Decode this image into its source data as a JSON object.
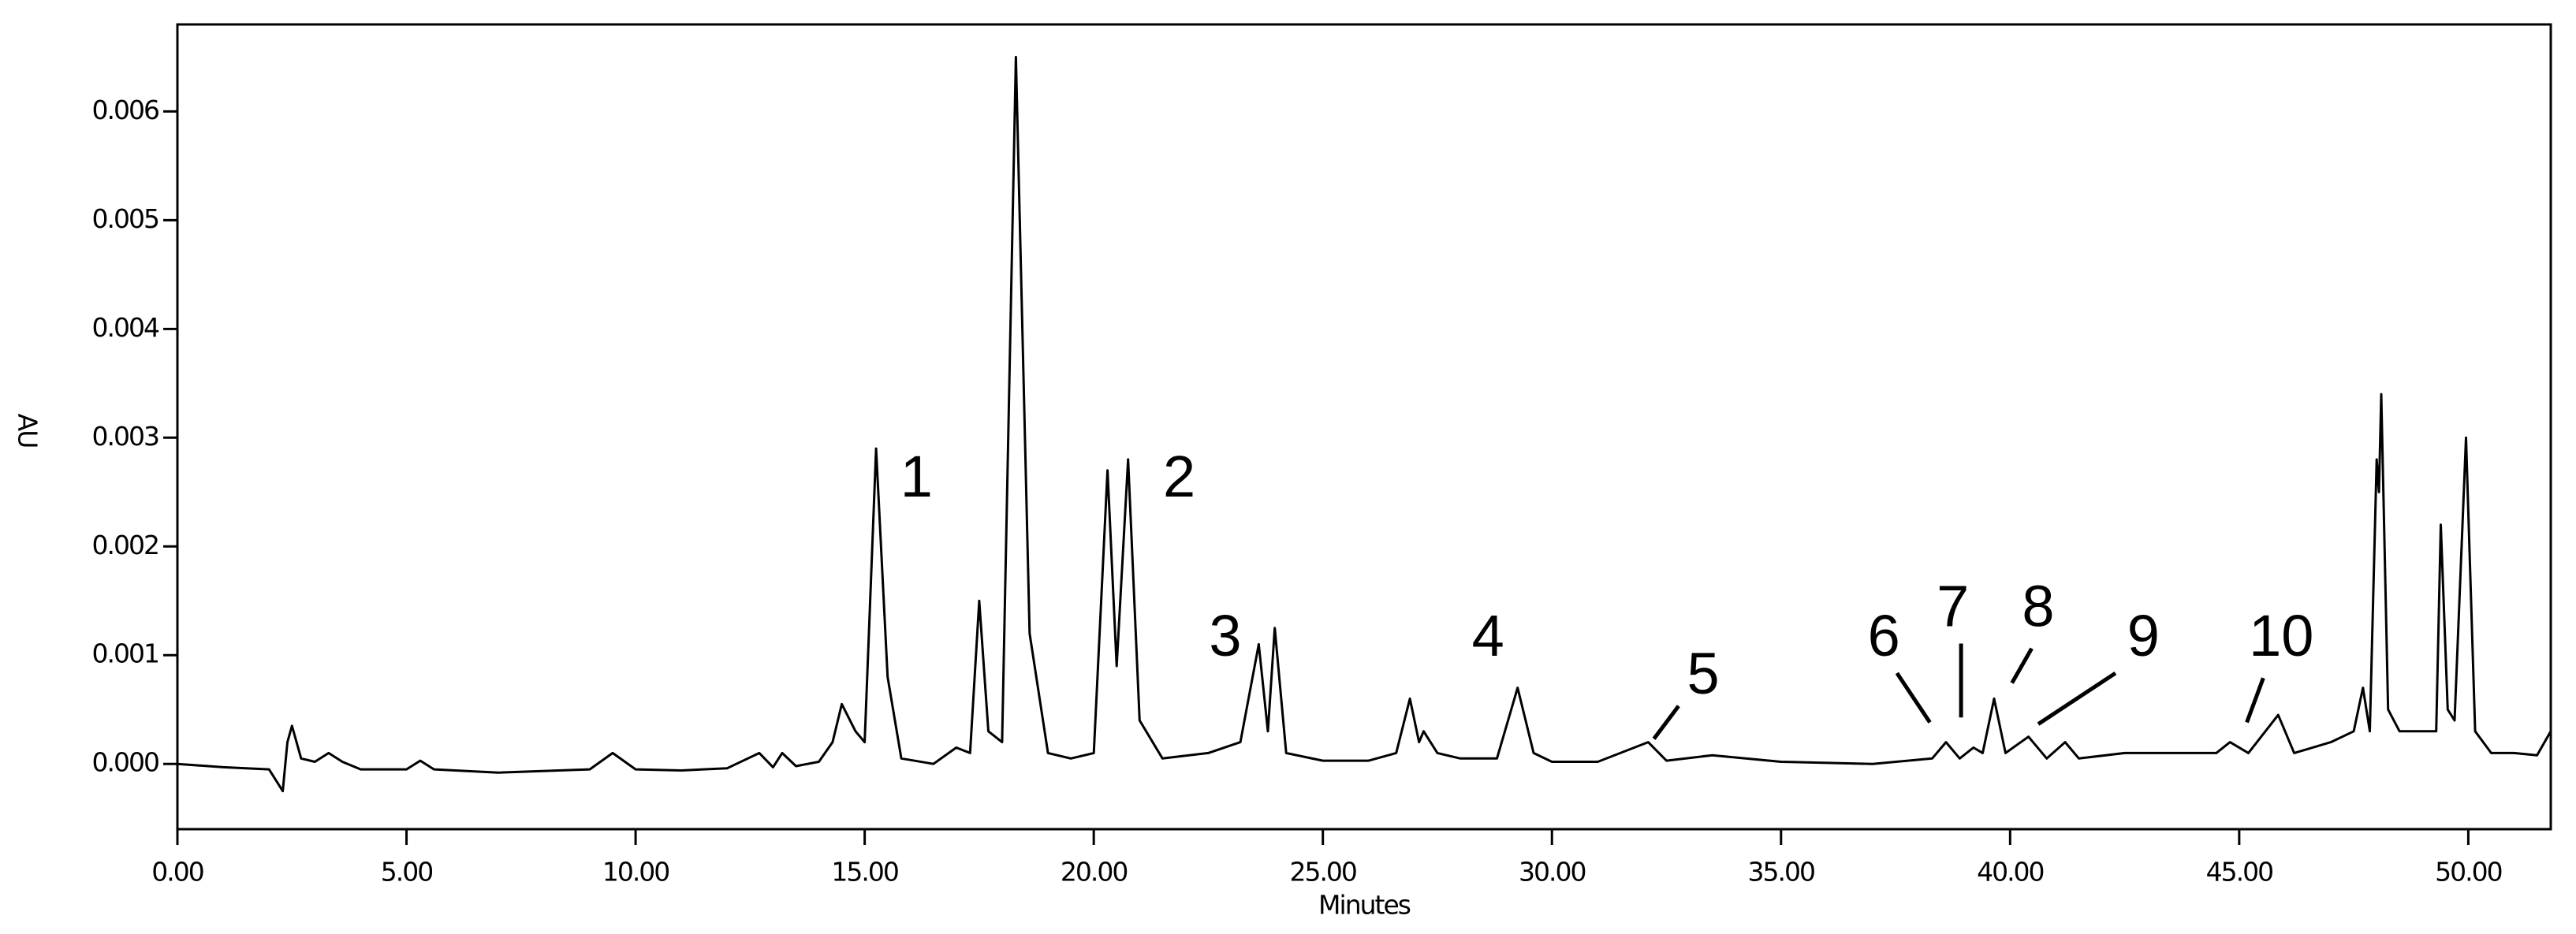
{
  "chart_data": {
    "type": "line",
    "x_label": "Minutes",
    "y_label": "AU",
    "xlim": [
      0,
      51.8
    ],
    "ylim": [
      -0.0006,
      0.0068
    ],
    "xticks": [
      {
        "value": 0,
        "label": "0.00"
      },
      {
        "value": 5,
        "label": "5.00"
      },
      {
        "value": 10,
        "label": "10.00"
      },
      {
        "value": 15,
        "label": "15.00"
      },
      {
        "value": 20,
        "label": "20.00"
      },
      {
        "value": 25,
        "label": "25.00"
      },
      {
        "value": 30,
        "label": "30.00"
      },
      {
        "value": 35,
        "label": "35.00"
      },
      {
        "value": 40,
        "label": "40.00"
      },
      {
        "value": 45,
        "label": "45.00"
      },
      {
        "value": 50,
        "label": "50.00"
      }
    ],
    "yticks": [
      {
        "value": 0,
        "label": "0.000"
      },
      {
        "value": 0.001,
        "label": "0.001"
      },
      {
        "value": 0.002,
        "label": "0.002"
      },
      {
        "value": 0.003,
        "label": "0.003"
      },
      {
        "value": 0.004,
        "label": "0.004"
      },
      {
        "value": 0.005,
        "label": "0.005"
      },
      {
        "value": 0.006,
        "label": "0.006"
      }
    ],
    "color": "#000000",
    "x": [
      0,
      1,
      2,
      2.3,
      2.4,
      2.5,
      2.7,
      3.0,
      3.3,
      3.6,
      4,
      5,
      5.3,
      5.6,
      7,
      9,
      9.5,
      10,
      11,
      12,
      12.7,
      13,
      13.2,
      13.5,
      14,
      14.3,
      14.5,
      14.8,
      15.0,
      15.25,
      15.5,
      15.8,
      16.5,
      17.0,
      17.3,
      17.5,
      17.7,
      18.0,
      18.3,
      18.6,
      19.0,
      19.5,
      20.0,
      20.3,
      20.5,
      20.75,
      21.0,
      21.5,
      22.5,
      23.2,
      23.6,
      23.8,
      23.95,
      24.2,
      25,
      26,
      26.6,
      26.9,
      27.1,
      27.2,
      27.5,
      28,
      28.8,
      29.25,
      29.6,
      30,
      31,
      32.1,
      32.5,
      33.5,
      35,
      37,
      38.3,
      38.6,
      38.9,
      39.2,
      39.4,
      39.65,
      39.9,
      40.4,
      40.8,
      41.2,
      41.5,
      42.5,
      44.5,
      44.8,
      45.2,
      45.85,
      46.2,
      47,
      47.5,
      47.7,
      47.85,
      48.0,
      48.05,
      48.1,
      48.25,
      48.5,
      49.0,
      49.3,
      49.4,
      49.55,
      49.7,
      49.95,
      50.15,
      50.5,
      51,
      51.5,
      51.8
    ],
    "values": [
      0,
      -3e-05,
      -5e-05,
      -0.00025,
      0.0002,
      0.00035,
      5e-05,
      2e-05,
      0.0001,
      2e-05,
      -5e-05,
      -5e-05,
      3e-05,
      -5e-05,
      -8e-05,
      -5e-05,
      0.0001,
      -5e-05,
      -6e-05,
      -4e-05,
      0.0001,
      -3e-05,
      0.0001,
      -2e-05,
      2e-05,
      0.0002,
      0.00055,
      0.0003,
      0.0002,
      0.0029,
      0.0008,
      5e-05,
      0,
      0.00015,
      0.0001,
      0.0015,
      0.0003,
      0.0002,
      0.0065,
      0.0012,
      0.0001,
      5e-05,
      0.0001,
      0.0027,
      0.0009,
      0.0028,
      0.0004,
      5e-05,
      0.0001,
      0.0002,
      0.0011,
      0.0003,
      0.00125,
      0.0001,
      3e-05,
      3e-05,
      0.0001,
      0.0006,
      0.0002,
      0.0003,
      0.0001,
      5e-05,
      5e-05,
      0.0007,
      0.0001,
      2e-05,
      2e-05,
      0.0002,
      3e-05,
      8e-05,
      2e-05,
      0,
      5e-05,
      0.0002,
      5e-05,
      0.00015,
      0.0001,
      0.0006,
      0.0001,
      0.00025,
      5e-05,
      0.0002,
      5e-05,
      0.0001,
      0.0001,
      0.0002,
      0.0001,
      0.00045,
      0.0001,
      0.0002,
      0.0003,
      0.0007,
      0.0003,
      0.0028,
      0.0025,
      0.0034,
      0.0005,
      0.0003,
      0.0003,
      0.0003,
      0.0022,
      0.0005,
      0.0004,
      0.003,
      0.0003,
      0.0001,
      0.0001,
      8e-05,
      0.0003
    ],
    "annotations": [
      "1",
      "2",
      "3",
      "4",
      "5",
      "6",
      "7",
      "8",
      "9",
      "10"
    ]
  }
}
